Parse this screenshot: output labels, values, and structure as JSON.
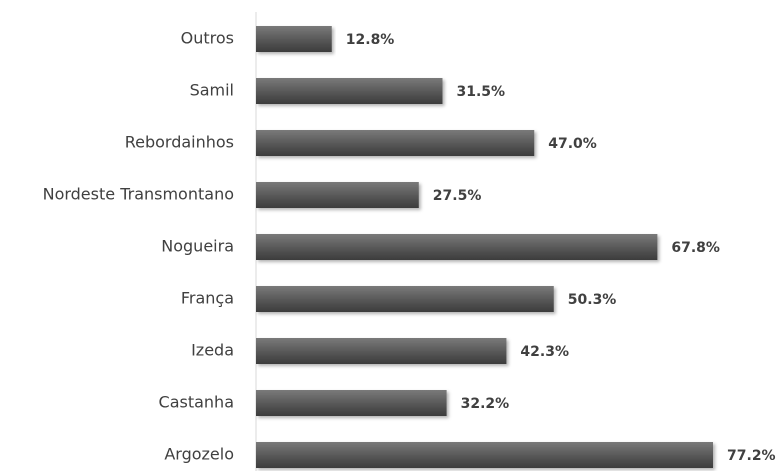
{
  "chart_data": {
    "type": "bar",
    "orientation": "horizontal",
    "categories": [
      "Outros",
      "Samil",
      "Rebordainhos",
      "Nordeste Transmontano",
      "Nogueira",
      "França",
      "Izeda",
      "Castanha",
      "Argozelo"
    ],
    "values": [
      12.8,
      31.5,
      47.0,
      27.5,
      67.8,
      50.3,
      42.3,
      32.2,
      77.2
    ],
    "value_labels": [
      "12.8%",
      "31.5%",
      "47.0%",
      "27.5%",
      "67.8%",
      "50.3%",
      "42.3%",
      "32.2%",
      "77.2%"
    ],
    "color": "#595959"
  }
}
